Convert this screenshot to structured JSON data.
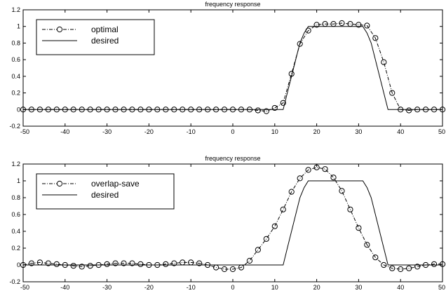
{
  "chart_data": [
    {
      "type": "line",
      "title": "frequency response",
      "xlabel": "",
      "ylabel": "",
      "xlim": [
        -50,
        50
      ],
      "ylim": [
        -0.2,
        1.2
      ],
      "xticks": [
        -50,
        -40,
        -30,
        -20,
        -10,
        0,
        10,
        20,
        30,
        40,
        50
      ],
      "yticks": [
        -0.2,
        0,
        0.2,
        0.4,
        0.6,
        0.8,
        1,
        1.2
      ],
      "xtick_labels": [
        "-50",
        "-40",
        "-30",
        "-20",
        "-10",
        "0",
        "10",
        "20",
        "30",
        "40",
        "50"
      ],
      "ytick_labels": [
        "-0.2",
        "0",
        "0.2",
        "0.4",
        "0.6",
        "0.8",
        "1",
        "1.2"
      ],
      "grid": false,
      "legend": "top-left",
      "series": [
        {
          "name": "optimal",
          "style": "dash-dot with circle markers",
          "x": [
            -50,
            -48,
            -46,
            -44,
            -42,
            -40,
            -38,
            -36,
            -34,
            -32,
            -30,
            -28,
            -26,
            -24,
            -22,
            -20,
            -18,
            -16,
            -14,
            -12,
            -10,
            -8,
            -6,
            -4,
            -2,
            0,
            2,
            4,
            6,
            8,
            10,
            12,
            14,
            16,
            18,
            20,
            22,
            24,
            26,
            28,
            30,
            32,
            34,
            36,
            38,
            40,
            42,
            44,
            46,
            48,
            50
          ],
          "y": [
            0,
            0,
            0,
            0,
            0,
            0,
            0,
            0,
            0,
            0,
            0,
            0,
            0,
            0,
            0,
            0,
            0,
            0,
            0,
            0,
            0,
            0,
            0,
            0,
            0,
            0,
            0,
            0,
            -0.01,
            -0.02,
            0.02,
            0.08,
            0.43,
            0.79,
            0.95,
            1.02,
            1.03,
            1.03,
            1.04,
            1.03,
            1.02,
            1.01,
            0.86,
            0.57,
            0.2,
            0.0,
            -0.01,
            0.0,
            0.0,
            0.0,
            0.0
          ]
        },
        {
          "name": "desired",
          "style": "solid",
          "x": [
            -50,
            12,
            13,
            14,
            15,
            16,
            17,
            18,
            30,
            31,
            32,
            33,
            34,
            35,
            36,
            37,
            50
          ],
          "y": [
            0,
            0,
            0.2,
            0.4,
            0.6,
            0.8,
            0.92,
            1,
            1,
            1,
            0.92,
            0.8,
            0.6,
            0.4,
            0.2,
            0,
            0
          ]
        }
      ]
    },
    {
      "type": "line",
      "title": "frequency response",
      "xlabel": "",
      "ylabel": "",
      "xlim": [
        -50,
        50
      ],
      "ylim": [
        -0.2,
        1.2
      ],
      "xticks": [
        -50,
        -40,
        -30,
        -20,
        -10,
        0,
        10,
        20,
        30,
        40,
        50
      ],
      "yticks": [
        -0.2,
        0,
        0.2,
        0.4,
        0.6,
        0.8,
        1,
        1.2
      ],
      "xtick_labels": [
        "-50",
        "-40",
        "-30",
        "-20",
        "-10",
        "0",
        "10",
        "20",
        "30",
        "40",
        "50"
      ],
      "ytick_labels": [
        "-0.2",
        "0",
        "0.2",
        "0.4",
        "0.6",
        "0.8",
        "1",
        "1.2"
      ],
      "grid": false,
      "legend": "top-left",
      "series": [
        {
          "name": "overlap-save",
          "style": "dash-dot with circle markers",
          "x": [
            -50,
            -48,
            -46,
            -44,
            -42,
            -40,
            -38,
            -36,
            -34,
            -32,
            -30,
            -28,
            -26,
            -24,
            -22,
            -20,
            -18,
            -16,
            -14,
            -12,
            -10,
            -8,
            -6,
            -4,
            -2,
            0,
            2,
            4,
            6,
            8,
            10,
            12,
            14,
            16,
            18,
            20,
            22,
            24,
            26,
            28,
            30,
            32,
            34,
            36,
            38,
            40,
            42,
            44,
            46,
            48,
            50
          ],
          "y": [
            0.0,
            0.02,
            0.03,
            0.02,
            0.01,
            0.0,
            -0.01,
            -0.02,
            -0.01,
            0.0,
            0.01,
            0.02,
            0.02,
            0.02,
            0.01,
            0.0,
            0.0,
            0.01,
            0.02,
            0.03,
            0.03,
            0.02,
            0.0,
            -0.03,
            -0.05,
            -0.05,
            -0.03,
            0.05,
            0.18,
            0.31,
            0.46,
            0.66,
            0.87,
            1.03,
            1.13,
            1.16,
            1.14,
            1.04,
            0.88,
            0.66,
            0.44,
            0.24,
            0.09,
            0.0,
            -0.04,
            -0.05,
            -0.04,
            -0.02,
            0.0,
            0.01,
            0.01
          ]
        },
        {
          "name": "desired",
          "style": "solid",
          "x": [
            -50,
            12,
            13,
            14,
            15,
            16,
            17,
            18,
            30,
            31,
            32,
            33,
            34,
            35,
            36,
            37,
            50
          ],
          "y": [
            0,
            0,
            0.2,
            0.4,
            0.6,
            0.8,
            0.92,
            1,
            1,
            1,
            0.92,
            0.8,
            0.6,
            0.4,
            0.2,
            0,
            0
          ]
        }
      ]
    }
  ]
}
